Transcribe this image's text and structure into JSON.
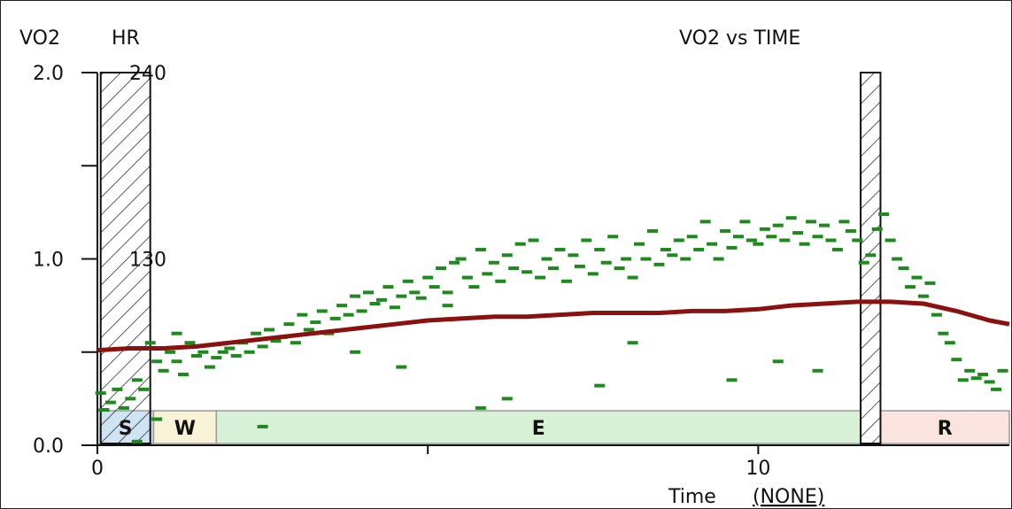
{
  "chart_data": {
    "type": "scatter",
    "title": "VO2 vs TIME",
    "y_label": "VO2",
    "y2_label": "HR",
    "x_label": "Time",
    "x_unit": "(NONE)",
    "x_range": [
      0,
      13.8
    ],
    "y_range": [
      0,
      2.0
    ],
    "y2_range": [
      0,
      240
    ],
    "x_ticks": [
      "0",
      "10"
    ],
    "y_ticks": [
      "0.0",
      "1.0",
      "2.0"
    ],
    "y2_ticks": [
      "130",
      "240"
    ],
    "colors": {
      "vo2": "#1e8a1e",
      "hr": "#8b1010",
      "seg_S": "#cfe3f3",
      "seg_W": "#f8f2d6",
      "seg_E": "#d6f1d6",
      "seg_R": "#fbe3e0"
    },
    "segments": [
      {
        "label": "S",
        "start": 0.0,
        "end": 0.85
      },
      {
        "label": "W",
        "start": 0.85,
        "end": 1.8
      },
      {
        "label": "E",
        "start": 1.8,
        "end": 11.55
      },
      {
        "label": "R",
        "start": 11.85,
        "end": 13.8
      }
    ],
    "hatched_bands": [
      {
        "start": 0.05,
        "end": 0.8
      },
      {
        "start": 11.55,
        "end": 11.85
      }
    ],
    "series": [
      {
        "name": "HR",
        "x": [
          0.0,
          0.5,
          1.0,
          1.5,
          2.0,
          2.5,
          3.0,
          3.5,
          4.0,
          4.5,
          5.0,
          5.5,
          6.0,
          6.5,
          7.0,
          7.5,
          8.0,
          8.5,
          9.0,
          9.5,
          10.0,
          10.5,
          11.0,
          11.5,
          12.0,
          12.5,
          13.0,
          13.5,
          13.8
        ],
        "y": [
          0.51,
          0.52,
          0.52,
          0.53,
          0.55,
          0.57,
          0.59,
          0.61,
          0.63,
          0.65,
          0.67,
          0.68,
          0.69,
          0.69,
          0.7,
          0.71,
          0.71,
          0.71,
          0.72,
          0.72,
          0.73,
          0.75,
          0.76,
          0.77,
          0.77,
          0.76,
          0.72,
          0.67,
          0.65
        ]
      },
      {
        "name": "VO2",
        "x": [
          0.05,
          0.1,
          0.2,
          0.3,
          0.4,
          0.5,
          0.6,
          0.7,
          0.8,
          0.9,
          1.0,
          1.1,
          1.2,
          1.3,
          1.4,
          1.5,
          1.6,
          1.7,
          1.8,
          1.9,
          2.0,
          2.1,
          2.2,
          2.3,
          2.4,
          2.5,
          2.6,
          2.7,
          2.8,
          2.9,
          3.0,
          3.1,
          3.2,
          3.3,
          3.4,
          3.5,
          3.6,
          3.7,
          3.8,
          3.9,
          4.0,
          4.1,
          4.2,
          4.3,
          4.4,
          4.5,
          4.6,
          4.7,
          4.8,
          4.9,
          5.0,
          5.1,
          5.2,
          5.3,
          5.4,
          5.5,
          5.6,
          5.7,
          5.8,
          5.9,
          6.0,
          6.1,
          6.2,
          6.3,
          6.4,
          6.5,
          6.6,
          6.7,
          6.8,
          6.9,
          7.0,
          7.1,
          7.2,
          7.3,
          7.4,
          7.5,
          7.6,
          7.7,
          7.8,
          7.9,
          8.0,
          8.1,
          8.2,
          8.3,
          8.4,
          8.5,
          8.6,
          8.7,
          8.8,
          8.9,
          9.0,
          9.1,
          9.2,
          9.3,
          9.4,
          9.5,
          9.6,
          9.7,
          9.8,
          9.9,
          10.0,
          10.1,
          10.2,
          10.3,
          10.4,
          10.5,
          10.6,
          10.7,
          10.8,
          10.9,
          11.0,
          11.1,
          11.2,
          11.3,
          11.4,
          11.5,
          11.6,
          11.7,
          11.8,
          11.9,
          12.0,
          12.1,
          12.2,
          12.3,
          12.4,
          12.5,
          12.6,
          12.7,
          12.8,
          12.9,
          13.0,
          13.1,
          13.2,
          13.3,
          13.4,
          13.5,
          13.6,
          13.7,
          1.2,
          3.9,
          5.8,
          6.2,
          9.6,
          10.3,
          0.6,
          0.9,
          2.5,
          4.6,
          7.6,
          5.3,
          8.1,
          10.9
        ],
        "y": [
          0.28,
          0.19,
          0.23,
          0.3,
          0.2,
          0.25,
          0.35,
          0.3,
          0.55,
          0.45,
          0.4,
          0.5,
          0.45,
          0.38,
          0.55,
          0.48,
          0.5,
          0.42,
          0.47,
          0.5,
          0.52,
          0.48,
          0.55,
          0.5,
          0.6,
          0.53,
          0.62,
          0.56,
          0.58,
          0.65,
          0.55,
          0.7,
          0.62,
          0.66,
          0.72,
          0.6,
          0.68,
          0.75,
          0.7,
          0.8,
          0.72,
          0.82,
          0.76,
          0.78,
          0.85,
          0.74,
          0.8,
          0.88,
          0.82,
          0.79,
          0.9,
          0.85,
          0.95,
          0.82,
          0.98,
          1.0,
          0.9,
          0.85,
          1.05,
          0.92,
          0.98,
          0.88,
          1.02,
          0.95,
          1.08,
          0.93,
          1.1,
          0.9,
          1.0,
          0.95,
          1.05,
          0.88,
          1.02,
          0.96,
          1.1,
          0.92,
          1.05,
          0.98,
          1.12,
          0.95,
          1.0,
          0.9,
          1.08,
          1.0,
          1.15,
          0.97,
          1.05,
          1.02,
          1.1,
          1.0,
          1.12,
          1.05,
          1.2,
          1.08,
          1.0,
          1.15,
          1.06,
          1.12,
          1.2,
          1.1,
          1.08,
          1.16,
          1.12,
          1.18,
          1.1,
          1.22,
          1.14,
          1.08,
          1.2,
          1.12,
          1.18,
          1.1,
          1.05,
          1.2,
          1.15,
          1.1,
          0.98,
          1.02,
          1.16,
          1.24,
          1.1,
          1.0,
          0.95,
          0.85,
          0.9,
          0.8,
          0.87,
          0.7,
          0.6,
          0.55,
          0.46,
          0.35,
          0.4,
          0.36,
          0.38,
          0.34,
          0.3,
          0.4,
          0.6,
          0.5,
          0.2,
          0.25,
          0.35,
          0.45,
          0.02,
          0.14,
          0.1,
          0.42,
          0.32,
          0.75,
          0.55,
          0.4
        ]
      }
    ]
  }
}
